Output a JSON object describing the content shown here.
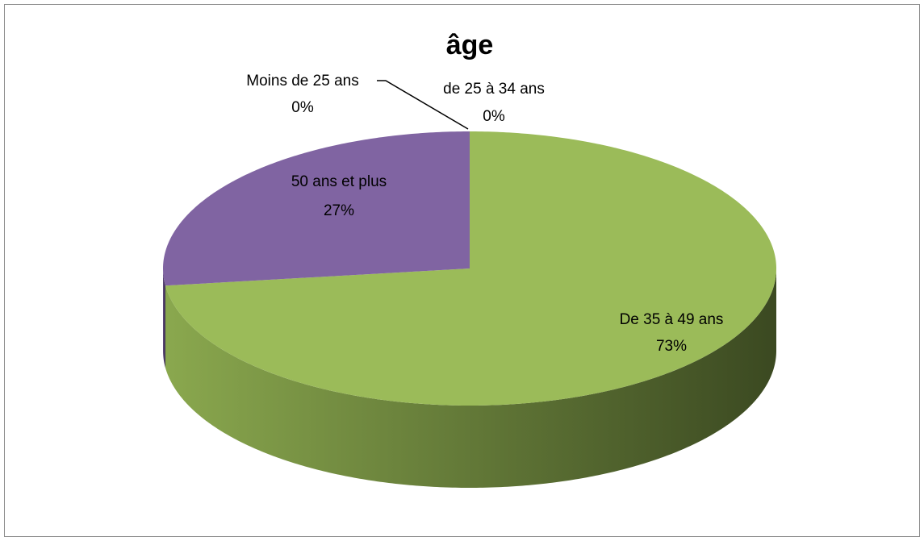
{
  "chart_data": {
    "type": "pie",
    "title": "âge",
    "categories": [
      "Moins de 25 ans",
      "de 25 à 34 ans",
      "De 35 à 49 ans",
      "50 ans et plus"
    ],
    "values": [
      0,
      0,
      73,
      27
    ],
    "value_labels": [
      "0%",
      "0%",
      "73%",
      "27%"
    ],
    "colors": [
      "#4f81bd",
      "#c0504d",
      "#9bbb59",
      "#8064a2"
    ]
  }
}
